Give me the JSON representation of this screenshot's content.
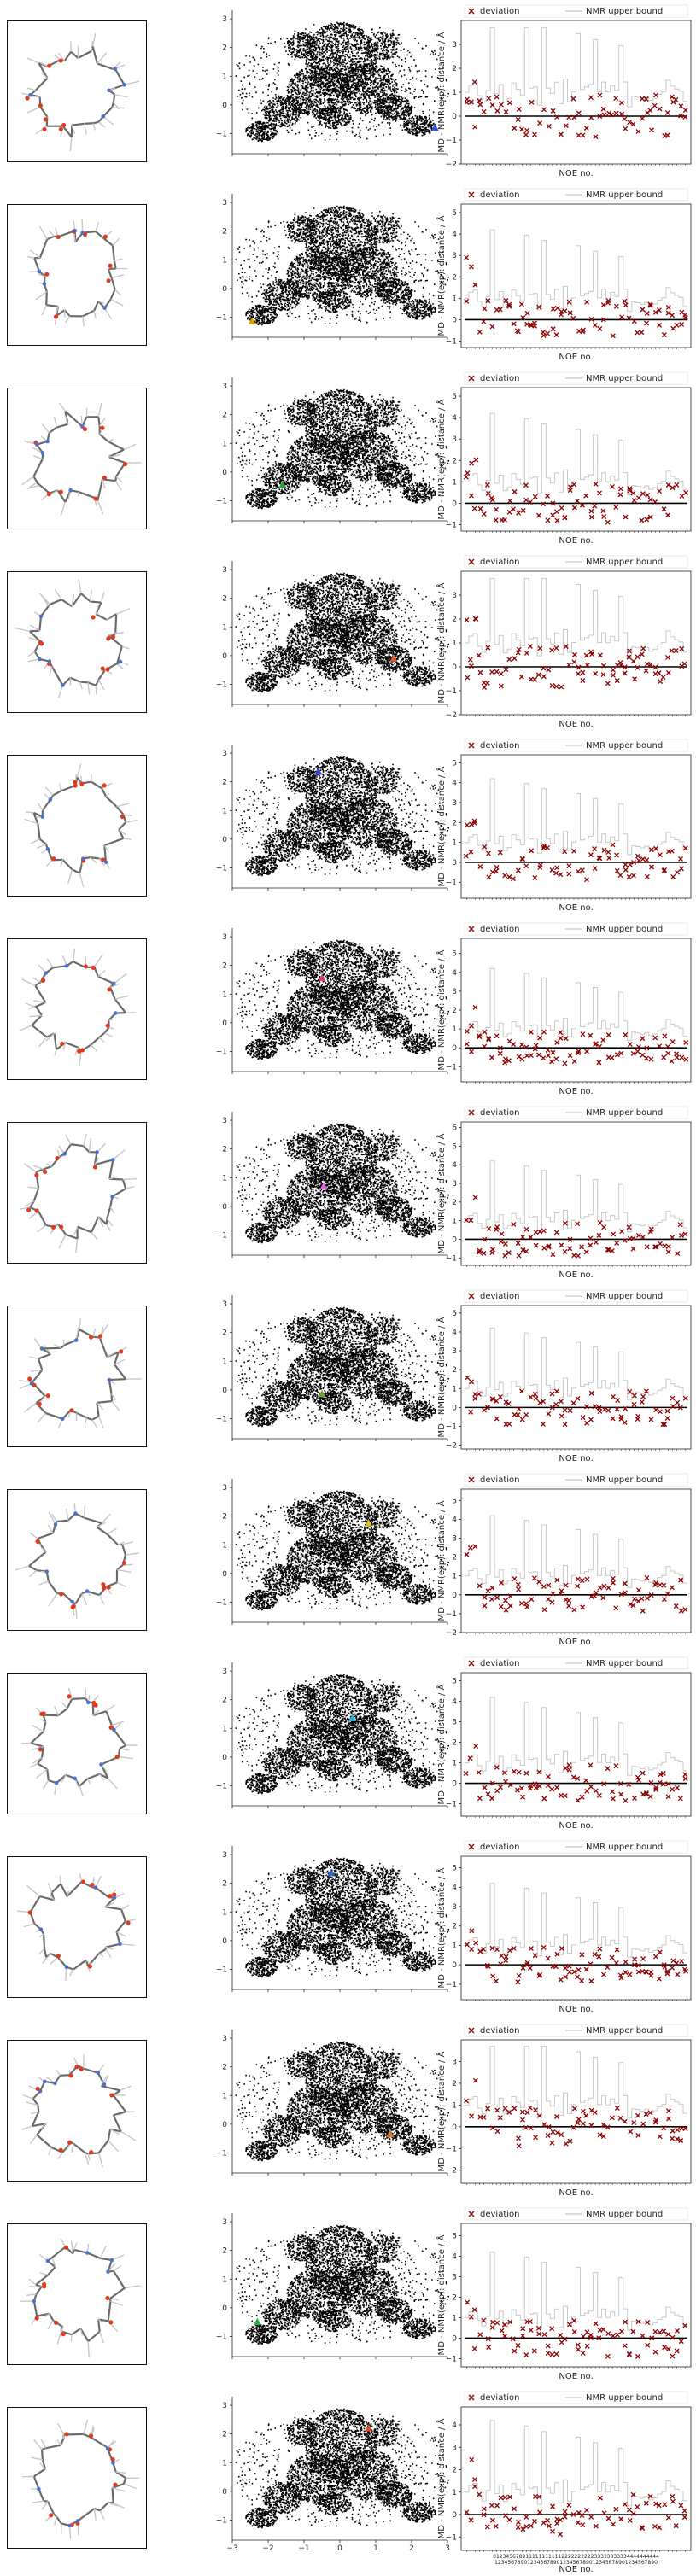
{
  "colors": {
    "deviation": "#8b0000",
    "upper_bound": "#c8c8c8",
    "zero_line": "#000000",
    "point_cloud": "#000000"
  },
  "marker_symbol": "triangle",
  "chart_data": {
    "type": "figure-grid",
    "rows": 14,
    "columns": [
      "molecule-render",
      "scatter",
      "noe-deviation"
    ],
    "scatter_axes": {
      "type": "scatter",
      "xlim": [
        -3,
        3
      ],
      "ylim": [
        -1.7,
        3.3
      ],
      "yticks": [
        -1,
        0,
        1,
        2,
        3
      ],
      "xticks_visible_on_last_row": [
        -3,
        -2,
        -1,
        0,
        1,
        2,
        3
      ],
      "grid": false,
      "description_cloud_color": "#000000"
    },
    "scatter_markers": [
      {
        "x": 2.65,
        "y": -0.8,
        "color": "#2f5bd8"
      },
      {
        "x": -2.45,
        "y": -1.15,
        "color": "#d9a300"
      },
      {
        "x": -1.6,
        "y": -0.45,
        "color": "#2e9e3e"
      },
      {
        "x": 1.5,
        "y": -0.1,
        "color": "#e0602a"
      },
      {
        "x": -0.6,
        "y": 2.35,
        "color": "#3a45c8"
      },
      {
        "x": -0.5,
        "y": 1.55,
        "color": "#d43d7a"
      },
      {
        "x": -0.45,
        "y": 0.7,
        "color": "#e06ad8"
      },
      {
        "x": -0.5,
        "y": -0.15,
        "color": "#6fa23a"
      },
      {
        "x": 0.8,
        "y": 1.75,
        "color": "#d6c21c"
      },
      {
        "x": 0.35,
        "y": 1.35,
        "color": "#2ab5d0"
      },
      {
        "x": -0.25,
        "y": 2.35,
        "color": "#2a6bd0"
      },
      {
        "x": 1.4,
        "y": -0.35,
        "color": "#e07a2a"
      },
      {
        "x": -2.3,
        "y": -0.5,
        "color": "#2fae46"
      },
      {
        "x": 0.8,
        "y": 2.2,
        "color": "#d6502a"
      }
    ],
    "noe_panels": {
      "type": "line+scatter",
      "ylabel": "MD - NMR(exp): distance / Å",
      "xlabel": "NOE no.",
      "legend": [
        "deviation",
        "NMR upper bound"
      ],
      "legend_position": "top-right",
      "ylims": [
        [
          -2,
          4
        ],
        [
          -1.3,
          5.4
        ],
        [
          -1.3,
          5.4
        ],
        [
          -2,
          4
        ],
        [
          -1.8,
          5.4
        ],
        [
          -1.8,
          5.8
        ],
        [
          -1.4,
          6.3
        ],
        [
          -2.2,
          5.4
        ],
        [
          -2,
          5.6
        ],
        [
          -1.6,
          5.4
        ],
        [
          -1.8,
          5.6
        ],
        [
          -2.6,
          4
        ],
        [
          -1.4,
          5.6
        ],
        [
          -1.6,
          4.8
        ]
      ],
      "yticks": [
        [
          -2,
          -1,
          0,
          1,
          2,
          3
        ],
        [
          -1,
          0,
          1,
          2,
          3,
          4,
          5
        ],
        [
          -1,
          0,
          1,
          2,
          3,
          4,
          5
        ],
        [
          -2,
          -1,
          0,
          1,
          2,
          3
        ],
        [
          -1,
          0,
          1,
          2,
          3,
          4,
          5
        ],
        [
          -1,
          0,
          1,
          2,
          3,
          4,
          5
        ],
        [
          -1,
          0,
          1,
          2,
          3,
          4,
          5,
          6
        ],
        [
          -2,
          -1,
          0,
          1,
          2,
          3,
          4,
          5
        ],
        [
          -2,
          -1,
          0,
          1,
          2,
          3,
          4,
          5
        ],
        [
          -1,
          0,
          1,
          2,
          3,
          4,
          5
        ],
        [
          -1,
          0,
          1,
          2,
          3,
          4,
          5
        ],
        [
          -2,
          -1,
          0,
          1,
          2,
          3
        ],
        [
          -1,
          0,
          1,
          2,
          3,
          4,
          5
        ],
        [
          -1,
          0,
          1,
          2,
          3,
          4
        ]
      ],
      "last_row_xtick_labels": [
        "012345678911111111111222222222233333333334444444444",
        "12345678901234567890123456789012345678901234567890"
      ],
      "n_noe": 52
    }
  },
  "texts": {
    "xlabel": "NOE no.",
    "ylabel": "MD - NMR(exp): distance / Å",
    "legend_deviation": "deviation",
    "legend_upper": "NMR upper bound",
    "noe_tick_line1": "012345678911111111111222222222233333333334444444444",
    "noe_tick_line2": "12345678901234567890123456789012345678901234567890"
  }
}
